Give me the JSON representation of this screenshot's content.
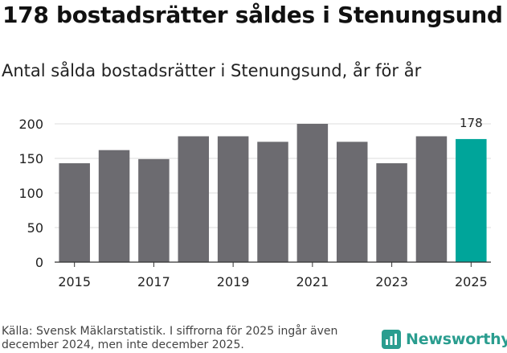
{
  "header": {
    "title": "178 bostadsrätter såldes i Stenungsund",
    "subtitle": "Antal sålda bostadsrätter i Stenungsund, år för år"
  },
  "footer": {
    "source": "Källa: Svensk Mäklarstatistik. I siffrorna för 2025 ingår även december 2024, men inte december 2025.",
    "brand": "Newsworthy"
  },
  "colors": {
    "bar": "#6c6b70",
    "highlight": "#00a59a",
    "grid": "#dcdcdc",
    "brand": "#2a9d8f"
  },
  "chart_data": {
    "type": "bar",
    "title": "Antal sålda bostadsrätter i Stenungsund, år för år",
    "xlabel": "",
    "ylabel": "",
    "categories": [
      "2015",
      "2016",
      "2017",
      "2018",
      "2019",
      "2020",
      "2021",
      "2022",
      "2023",
      "2024",
      "2025"
    ],
    "values": [
      143,
      162,
      149,
      182,
      182,
      174,
      200,
      174,
      143,
      182,
      178
    ],
    "highlight_index": 10,
    "highlight_label": "178",
    "x_tick_labels": [
      "2015",
      "2017",
      "2019",
      "2021",
      "2023",
      "2025"
    ],
    "y_ticks": [
      0,
      50,
      100,
      150,
      200
    ],
    "ylim": [
      0,
      200
    ],
    "grid": true
  }
}
